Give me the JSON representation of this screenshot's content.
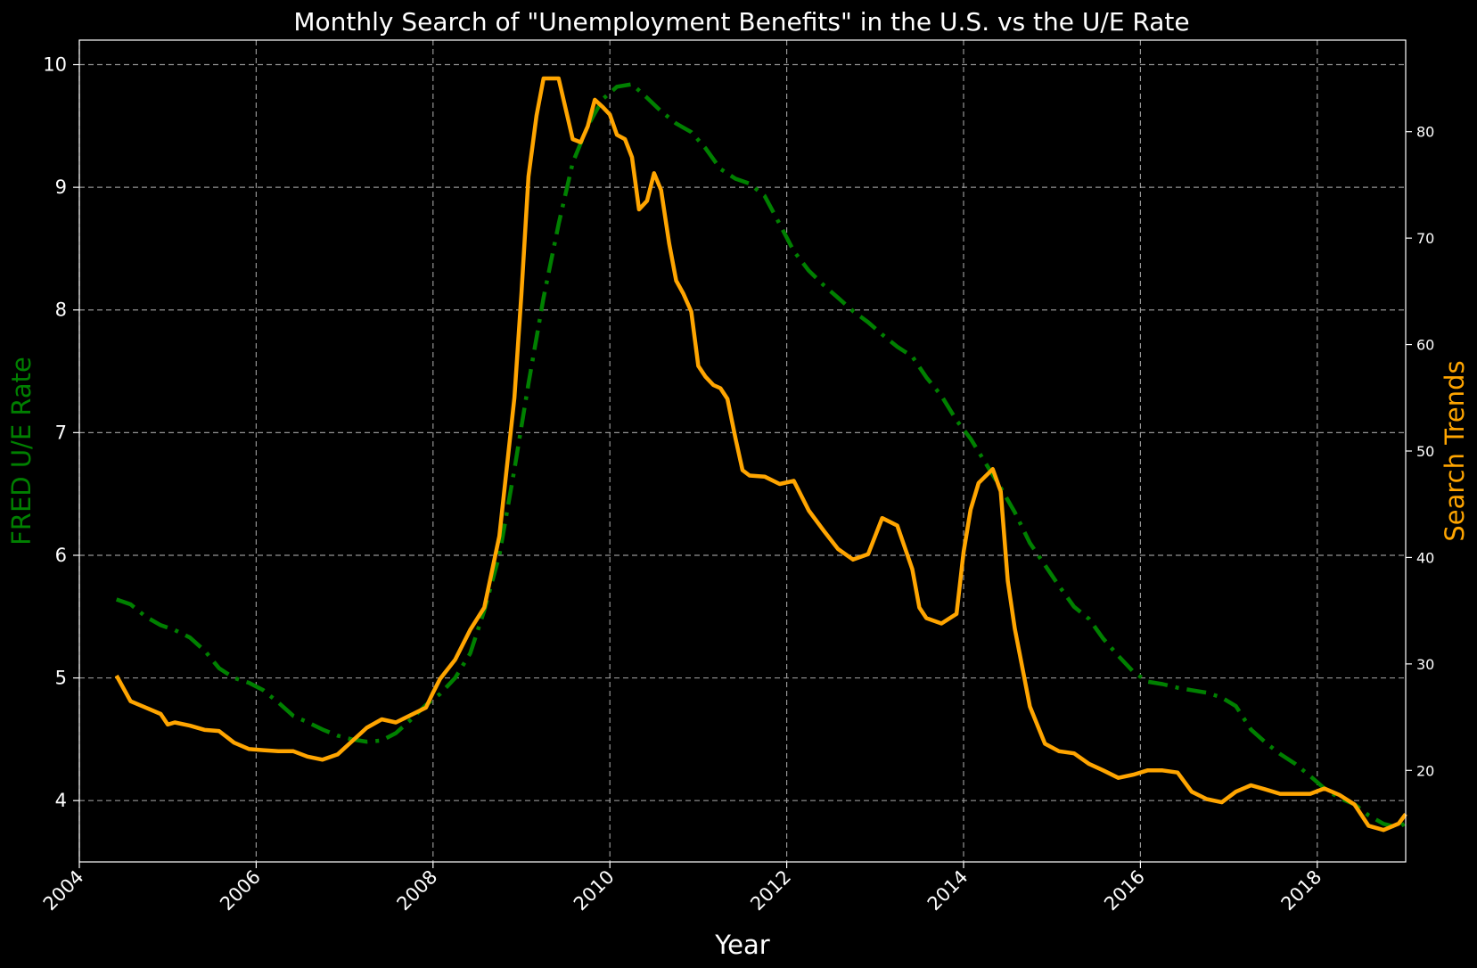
{
  "chart_data": {
    "type": "line",
    "title": "Monthly Search of \"Unemployment Benefits\" in the U.S. vs the U/E Rate",
    "xlabel": "Year",
    "ylabel_left": "FRED U/E Rate",
    "ylabel_right": "Search Trends",
    "xlim": [
      2004.0,
      2019.0
    ],
    "ylim_left": [
      3.5,
      10.2
    ],
    "ylim_right": [
      11.4,
      88.6
    ],
    "x_ticks": [
      "2004",
      "2006",
      "2008",
      "2010",
      "2012",
      "2014",
      "2016",
      "2018"
    ],
    "y_ticks_left": [
      "4",
      "5",
      "6",
      "7",
      "8",
      "9",
      "10"
    ],
    "y_ticks_right": [
      "20",
      "30",
      "40",
      "50",
      "60",
      "70",
      "80"
    ],
    "grid": true,
    "colors": {
      "background": "#000000",
      "text": "#ffffff",
      "ue_rate": "#008000",
      "search": "#ffa500"
    },
    "series": [
      {
        "axis": "left",
        "style": "dash-dot",
        "points": [
          [
            2004.42,
            5.64
          ],
          [
            2004.58,
            5.6
          ],
          [
            2004.75,
            5.5
          ],
          [
            2004.92,
            5.43
          ],
          [
            2005.08,
            5.39
          ],
          [
            2005.25,
            5.33
          ],
          [
            2005.42,
            5.22
          ],
          [
            2005.58,
            5.08
          ],
          [
            2005.75,
            5.0
          ],
          [
            2005.92,
            4.96
          ],
          [
            2006.08,
            4.9
          ],
          [
            2006.25,
            4.8
          ],
          [
            2006.42,
            4.69
          ],
          [
            2006.58,
            4.64
          ],
          [
            2006.75,
            4.58
          ],
          [
            2006.92,
            4.53
          ],
          [
            2007.08,
            4.5
          ],
          [
            2007.25,
            4.48
          ],
          [
            2007.42,
            4.49
          ],
          [
            2007.58,
            4.55
          ],
          [
            2007.75,
            4.66
          ],
          [
            2007.92,
            4.78
          ],
          [
            2008.08,
            4.87
          ],
          [
            2008.25,
            5.0
          ],
          [
            2008.42,
            5.2
          ],
          [
            2008.58,
            5.55
          ],
          [
            2008.75,
            6.0
          ],
          [
            2008.92,
            6.7
          ],
          [
            2009.08,
            7.4
          ],
          [
            2009.25,
            8.1
          ],
          [
            2009.42,
            8.7
          ],
          [
            2009.58,
            9.2
          ],
          [
            2009.75,
            9.5
          ],
          [
            2009.92,
            9.72
          ],
          [
            2010.08,
            9.82
          ],
          [
            2010.25,
            9.84
          ],
          [
            2010.42,
            9.73
          ],
          [
            2010.58,
            9.62
          ],
          [
            2010.75,
            9.52
          ],
          [
            2010.92,
            9.45
          ],
          [
            2011.08,
            9.32
          ],
          [
            2011.25,
            9.15
          ],
          [
            2011.42,
            9.07
          ],
          [
            2011.58,
            9.03
          ],
          [
            2011.75,
            8.93
          ],
          [
            2011.92,
            8.7
          ],
          [
            2012.08,
            8.48
          ],
          [
            2012.25,
            8.32
          ],
          [
            2012.42,
            8.2
          ],
          [
            2012.58,
            8.1
          ],
          [
            2012.75,
            7.99
          ],
          [
            2012.92,
            7.9
          ],
          [
            2013.08,
            7.8
          ],
          [
            2013.25,
            7.7
          ],
          [
            2013.42,
            7.62
          ],
          [
            2013.58,
            7.45
          ],
          [
            2013.75,
            7.3
          ],
          [
            2013.92,
            7.1
          ],
          [
            2014.08,
            6.95
          ],
          [
            2014.25,
            6.75
          ],
          [
            2014.42,
            6.55
          ],
          [
            2014.58,
            6.35
          ],
          [
            2014.75,
            6.1
          ],
          [
            2014.92,
            5.92
          ],
          [
            2015.08,
            5.75
          ],
          [
            2015.25,
            5.58
          ],
          [
            2015.42,
            5.48
          ],
          [
            2015.58,
            5.32
          ],
          [
            2015.75,
            5.18
          ],
          [
            2015.92,
            5.05
          ],
          [
            2016.08,
            4.97
          ],
          [
            2016.25,
            4.95
          ],
          [
            2016.42,
            4.92
          ],
          [
            2016.58,
            4.9
          ],
          [
            2016.75,
            4.88
          ],
          [
            2016.92,
            4.84
          ],
          [
            2017.08,
            4.77
          ],
          [
            2017.25,
            4.58
          ],
          [
            2017.42,
            4.47
          ],
          [
            2017.58,
            4.38
          ],
          [
            2017.75,
            4.3
          ],
          [
            2017.92,
            4.2
          ],
          [
            2018.08,
            4.1
          ],
          [
            2018.25,
            4.02
          ],
          [
            2018.42,
            3.97
          ],
          [
            2018.58,
            3.88
          ],
          [
            2018.75,
            3.81
          ],
          [
            2018.92,
            3.78
          ],
          [
            2019.0,
            3.82
          ]
        ]
      },
      {
        "axis": "right",
        "style": "solid",
        "points": [
          [
            2004.42,
            28.9
          ],
          [
            2004.58,
            26.5
          ],
          [
            2004.75,
            25.9
          ],
          [
            2004.92,
            25.3
          ],
          [
            2005.0,
            24.3
          ],
          [
            2005.08,
            24.5
          ],
          [
            2005.25,
            24.2
          ],
          [
            2005.42,
            23.8
          ],
          [
            2005.58,
            23.7
          ],
          [
            2005.75,
            22.6
          ],
          [
            2005.92,
            22.0
          ],
          [
            2006.08,
            21.9
          ],
          [
            2006.25,
            21.8
          ],
          [
            2006.42,
            21.8
          ],
          [
            2006.58,
            21.3
          ],
          [
            2006.75,
            21.0
          ],
          [
            2006.92,
            21.5
          ],
          [
            2007.08,
            22.7
          ],
          [
            2007.25,
            24.0
          ],
          [
            2007.42,
            24.8
          ],
          [
            2007.58,
            24.5
          ],
          [
            2007.75,
            25.2
          ],
          [
            2007.92,
            25.9
          ],
          [
            2008.0,
            27.3
          ],
          [
            2008.08,
            28.6
          ],
          [
            2008.25,
            30.4
          ],
          [
            2008.42,
            33.2
          ],
          [
            2008.58,
            35.3
          ],
          [
            2008.75,
            42.0
          ],
          [
            2008.92,
            55.0
          ],
          [
            2009.0,
            64.8
          ],
          [
            2009.08,
            75.8
          ],
          [
            2009.17,
            81.5
          ],
          [
            2009.25,
            85.0
          ],
          [
            2009.42,
            85.0
          ],
          [
            2009.58,
            79.3
          ],
          [
            2009.67,
            79.0
          ],
          [
            2009.75,
            80.5
          ],
          [
            2009.83,
            83.0
          ],
          [
            2009.92,
            82.3
          ],
          [
            2010.0,
            81.6
          ],
          [
            2010.08,
            79.7
          ],
          [
            2010.17,
            79.3
          ],
          [
            2010.25,
            77.6
          ],
          [
            2010.33,
            72.7
          ],
          [
            2010.42,
            73.5
          ],
          [
            2010.5,
            76.1
          ],
          [
            2010.58,
            74.5
          ],
          [
            2010.67,
            69.5
          ],
          [
            2010.75,
            66.0
          ],
          [
            2010.83,
            64.8
          ],
          [
            2010.92,
            63.1
          ],
          [
            2011.0,
            58.0
          ],
          [
            2011.08,
            57.0
          ],
          [
            2011.17,
            56.2
          ],
          [
            2011.25,
            55.9
          ],
          [
            2011.33,
            54.9
          ],
          [
            2011.42,
            51.2
          ],
          [
            2011.5,
            48.2
          ],
          [
            2011.58,
            47.7
          ],
          [
            2011.75,
            47.6
          ],
          [
            2011.92,
            46.9
          ],
          [
            2012.08,
            47.2
          ],
          [
            2012.25,
            44.4
          ],
          [
            2012.42,
            42.5
          ],
          [
            2012.58,
            40.8
          ],
          [
            2012.75,
            39.8
          ],
          [
            2012.92,
            40.3
          ],
          [
            2013.08,
            43.7
          ],
          [
            2013.25,
            43.0
          ],
          [
            2013.42,
            38.9
          ],
          [
            2013.5,
            35.3
          ],
          [
            2013.58,
            34.3
          ],
          [
            2013.75,
            33.8
          ],
          [
            2013.92,
            34.7
          ],
          [
            2014.0,
            40.5
          ],
          [
            2014.08,
            44.5
          ],
          [
            2014.17,
            47.0
          ],
          [
            2014.33,
            48.3
          ],
          [
            2014.42,
            46.2
          ],
          [
            2014.5,
            37.8
          ],
          [
            2014.58,
            33.3
          ],
          [
            2014.75,
            26.0
          ],
          [
            2014.92,
            22.5
          ],
          [
            2015.08,
            21.8
          ],
          [
            2015.25,
            21.6
          ],
          [
            2015.42,
            20.6
          ],
          [
            2015.58,
            20.0
          ],
          [
            2015.75,
            19.3
          ],
          [
            2015.92,
            19.6
          ],
          [
            2016.08,
            20.0
          ],
          [
            2016.25,
            20.0
          ],
          [
            2016.42,
            19.8
          ],
          [
            2016.58,
            18.0
          ],
          [
            2016.75,
            17.3
          ],
          [
            2016.92,
            17.0
          ],
          [
            2017.08,
            18.0
          ],
          [
            2017.25,
            18.6
          ],
          [
            2017.42,
            18.2
          ],
          [
            2017.58,
            17.8
          ],
          [
            2017.75,
            17.8
          ],
          [
            2017.92,
            17.8
          ],
          [
            2018.08,
            18.3
          ],
          [
            2018.25,
            17.7
          ],
          [
            2018.42,
            16.8
          ],
          [
            2018.58,
            14.8
          ],
          [
            2018.75,
            14.4
          ],
          [
            2018.92,
            15.0
          ],
          [
            2019.0,
            15.9
          ]
        ]
      }
    ]
  }
}
